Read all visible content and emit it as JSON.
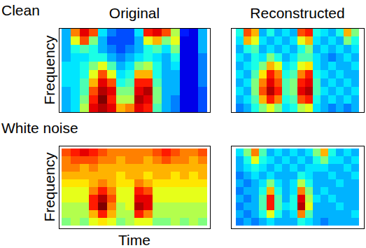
{
  "chart_data": [
    {
      "type": "heatmap",
      "annotations": [
        "Clean"
      ],
      "title": "Original",
      "ylabel": "Frequency",
      "tick_labels": false,
      "zlim": [
        0,
        1
      ],
      "cells": [
        [
          0.3,
          0.75,
          0.9,
          0.8,
          0.35,
          0.25,
          0.2,
          0.2,
          0.35,
          0.85,
          0.9,
          0.8,
          0.55,
          0.15,
          0.1,
          0.3
        ],
        [
          0.3,
          0.6,
          0.8,
          0.5,
          0.3,
          0.2,
          0.2,
          0.2,
          0.3,
          0.6,
          0.7,
          0.5,
          0.6,
          0.1,
          0.1,
          0.3
        ],
        [
          0.3,
          0.4,
          0.45,
          0.4,
          0.3,
          0.25,
          0.2,
          0.25,
          0.3,
          0.4,
          0.45,
          0.35,
          0.5,
          0.1,
          0.1,
          0.3
        ],
        [
          0.3,
          0.35,
          0.35,
          0.4,
          0.4,
          0.3,
          0.25,
          0.3,
          0.35,
          0.4,
          0.35,
          0.3,
          0.4,
          0.1,
          0.1,
          0.25
        ],
        [
          0.35,
          0.35,
          0.4,
          0.5,
          0.6,
          0.45,
          0.3,
          0.35,
          0.5,
          0.55,
          0.4,
          0.3,
          0.35,
          0.1,
          0.1,
          0.25
        ],
        [
          0.35,
          0.35,
          0.4,
          0.6,
          0.8,
          0.6,
          0.35,
          0.4,
          0.7,
          0.7,
          0.4,
          0.3,
          0.3,
          0.1,
          0.1,
          0.25
        ],
        [
          0.35,
          0.35,
          0.45,
          0.7,
          0.9,
          0.8,
          0.4,
          0.45,
          0.85,
          0.85,
          0.45,
          0.3,
          0.3,
          0.1,
          0.1,
          0.25
        ],
        [
          0.3,
          0.35,
          0.45,
          0.8,
          0.95,
          0.9,
          0.5,
          0.5,
          0.9,
          0.95,
          0.5,
          0.3,
          0.3,
          0.1,
          0.1,
          0.2
        ],
        [
          0.3,
          0.35,
          0.5,
          0.85,
          1.0,
          0.85,
          0.55,
          0.55,
          0.95,
          0.9,
          0.5,
          0.3,
          0.25,
          0.1,
          0.1,
          0.2
        ],
        [
          0.3,
          0.35,
          0.55,
          0.9,
          0.95,
          0.9,
          0.7,
          0.75,
          0.9,
          0.85,
          0.45,
          0.3,
          0.25,
          0.1,
          0.1,
          0.2
        ]
      ]
    },
    {
      "type": "heatmap",
      "title": "Reconstructed",
      "tick_labels": false,
      "zlim": [
        0,
        1
      ],
      "cells": [
        [
          0.4,
          0.8,
          0.7,
          0.3,
          0.4,
          0.3,
          0.35,
          0.3,
          0.8,
          0.85,
          0.4,
          0.35,
          0.3,
          0.4,
          0.7,
          0.5
        ],
        [
          0.35,
          0.7,
          0.6,
          0.35,
          0.3,
          0.35,
          0.3,
          0.35,
          0.6,
          0.7,
          0.35,
          0.3,
          0.35,
          0.3,
          0.5,
          0.4
        ],
        [
          0.3,
          0.4,
          0.45,
          0.3,
          0.35,
          0.3,
          0.35,
          0.3,
          0.4,
          0.5,
          0.3,
          0.35,
          0.3,
          0.35,
          0.3,
          0.35
        ],
        [
          0.35,
          0.3,
          0.4,
          0.35,
          0.5,
          0.4,
          0.3,
          0.35,
          0.45,
          0.45,
          0.35,
          0.3,
          0.25,
          0.3,
          0.35,
          0.3
        ],
        [
          0.3,
          0.35,
          0.4,
          0.5,
          0.7,
          0.6,
          0.35,
          0.4,
          0.6,
          0.65,
          0.35,
          0.3,
          0.35,
          0.3,
          0.3,
          0.35
        ],
        [
          0.35,
          0.3,
          0.45,
          0.65,
          0.85,
          0.75,
          0.4,
          0.45,
          0.75,
          0.85,
          0.4,
          0.35,
          0.3,
          0.35,
          0.3,
          0.3
        ],
        [
          0.3,
          0.35,
          0.5,
          0.75,
          0.9,
          0.8,
          0.45,
          0.5,
          0.85,
          0.9,
          0.45,
          0.3,
          0.35,
          0.3,
          0.35,
          0.3
        ],
        [
          0.35,
          0.3,
          0.5,
          0.8,
          0.95,
          0.85,
          0.45,
          0.5,
          0.9,
          0.95,
          0.45,
          0.35,
          0.3,
          0.35,
          0.3,
          0.35
        ],
        [
          0.3,
          0.35,
          0.45,
          0.7,
          0.85,
          0.75,
          0.4,
          0.45,
          0.8,
          0.85,
          0.4,
          0.3,
          0.35,
          0.3,
          0.35,
          0.3
        ],
        [
          0.25,
          0.3,
          0.4,
          0.5,
          0.6,
          0.5,
          0.35,
          0.4,
          0.55,
          0.6,
          0.35,
          0.3,
          0.25,
          0.3,
          0.25,
          0.3
        ]
      ]
    },
    {
      "type": "heatmap",
      "annotations": [
        "White noise"
      ],
      "ylabel": "Frequency",
      "xlabel": "Time",
      "tick_labels": false,
      "zlim": [
        0,
        1
      ],
      "cells": [
        [
          0.8,
          0.85,
          0.9,
          0.85,
          0.8,
          0.75,
          0.75,
          0.75,
          0.75,
          0.75,
          0.8,
          0.85,
          0.8,
          0.75,
          0.75,
          0.8
        ],
        [
          0.75,
          0.8,
          0.8,
          0.8,
          0.75,
          0.75,
          0.7,
          0.75,
          0.75,
          0.7,
          0.75,
          0.8,
          0.75,
          0.75,
          0.7,
          0.75
        ],
        [
          0.75,
          0.75,
          0.7,
          0.75,
          0.7,
          0.7,
          0.7,
          0.7,
          0.7,
          0.7,
          0.7,
          0.7,
          0.7,
          0.7,
          0.7,
          0.7
        ],
        [
          0.7,
          0.7,
          0.7,
          0.7,
          0.7,
          0.7,
          0.65,
          0.7,
          0.7,
          0.65,
          0.7,
          0.7,
          0.65,
          0.7,
          0.65,
          0.7
        ],
        [
          0.65,
          0.65,
          0.65,
          0.7,
          0.75,
          0.7,
          0.65,
          0.65,
          0.75,
          0.7,
          0.65,
          0.65,
          0.65,
          0.65,
          0.65,
          0.65
        ],
        [
          0.6,
          0.6,
          0.6,
          0.75,
          0.85,
          0.75,
          0.6,
          0.6,
          0.85,
          0.8,
          0.6,
          0.6,
          0.6,
          0.6,
          0.6,
          0.6
        ],
        [
          0.6,
          0.6,
          0.6,
          0.85,
          0.95,
          0.8,
          0.6,
          0.6,
          0.9,
          0.9,
          0.6,
          0.6,
          0.6,
          0.6,
          0.6,
          0.6
        ],
        [
          0.55,
          0.55,
          0.55,
          0.85,
          1.0,
          0.75,
          0.55,
          0.6,
          0.95,
          0.9,
          0.55,
          0.55,
          0.55,
          0.55,
          0.55,
          0.55
        ],
        [
          0.55,
          0.55,
          0.55,
          0.7,
          0.85,
          0.7,
          0.55,
          0.55,
          0.85,
          0.75,
          0.55,
          0.55,
          0.55,
          0.55,
          0.55,
          0.55
        ],
        [
          0.5,
          0.55,
          0.5,
          0.6,
          0.65,
          0.6,
          0.5,
          0.55,
          0.6,
          0.6,
          0.5,
          0.5,
          0.55,
          0.5,
          0.55,
          0.5
        ]
      ]
    },
    {
      "type": "heatmap",
      "tick_labels": false,
      "zlim": [
        0,
        1
      ],
      "cells": [
        [
          0.35,
          0.5,
          0.75,
          0.45,
          0.3,
          0.35,
          0.3,
          0.35,
          0.3,
          0.35,
          0.5,
          0.7,
          0.4,
          0.3,
          0.35,
          0.3
        ],
        [
          0.3,
          0.4,
          0.6,
          0.4,
          0.35,
          0.3,
          0.35,
          0.3,
          0.35,
          0.3,
          0.4,
          0.5,
          0.35,
          0.35,
          0.3,
          0.35
        ],
        [
          0.3,
          0.35,
          0.4,
          0.35,
          0.3,
          0.35,
          0.3,
          0.35,
          0.3,
          0.35,
          0.35,
          0.35,
          0.3,
          0.3,
          0.35,
          0.3
        ],
        [
          0.25,
          0.3,
          0.35,
          0.3,
          0.35,
          0.3,
          0.3,
          0.3,
          0.4,
          0.35,
          0.3,
          0.3,
          0.35,
          0.3,
          0.3,
          0.35
        ],
        [
          0.3,
          0.25,
          0.3,
          0.35,
          0.5,
          0.35,
          0.3,
          0.35,
          0.55,
          0.4,
          0.3,
          0.3,
          0.3,
          0.35,
          0.3,
          0.3
        ],
        [
          0.25,
          0.3,
          0.3,
          0.4,
          0.7,
          0.4,
          0.3,
          0.35,
          0.75,
          0.5,
          0.3,
          0.35,
          0.3,
          0.3,
          0.3,
          0.3
        ],
        [
          0.3,
          0.25,
          0.3,
          0.45,
          0.85,
          0.45,
          0.3,
          0.4,
          0.9,
          0.55,
          0.35,
          0.3,
          0.35,
          0.3,
          0.3,
          0.3
        ],
        [
          0.25,
          0.3,
          0.3,
          0.45,
          0.85,
          0.45,
          0.35,
          0.4,
          0.95,
          0.6,
          0.3,
          0.3,
          0.3,
          0.35,
          0.3,
          0.3
        ],
        [
          0.3,
          0.25,
          0.3,
          0.4,
          0.6,
          0.4,
          0.3,
          0.35,
          0.75,
          0.45,
          0.3,
          0.3,
          0.3,
          0.3,
          0.3,
          0.35
        ],
        [
          0.25,
          0.3,
          0.25,
          0.3,
          0.35,
          0.3,
          0.3,
          0.3,
          0.4,
          0.35,
          0.3,
          0.25,
          0.3,
          0.3,
          0.3,
          0.3
        ]
      ]
    }
  ]
}
